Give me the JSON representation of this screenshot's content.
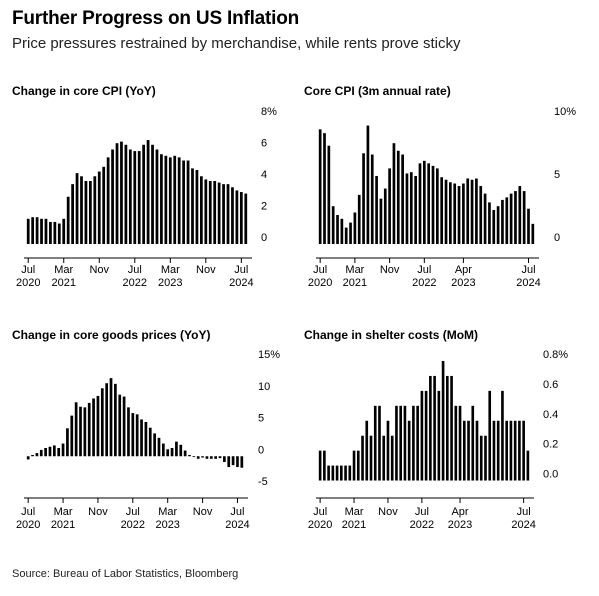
{
  "header": {
    "title": "Further Progress on US Inflation",
    "subtitle": "Price pressures restrained by merchandise, while rents prove sticky"
  },
  "footer": {
    "source": "Source: Bureau of Labor Statistics, Bloomberg"
  },
  "colors": {
    "bar": "#000000",
    "background": "#ffffff"
  },
  "chart_data": [
    {
      "type": "bar",
      "title": "Change in core CPI (YoY)",
      "ylim": [
        0,
        8
      ],
      "yticks": [
        "8%",
        "6",
        "4",
        "2",
        "0"
      ],
      "ytick_values": [
        8,
        6,
        4,
        2,
        0
      ],
      "x_tick_labels": [
        {
          "month": "Jul",
          "year": "2020",
          "index": 0
        },
        {
          "month": "Mar",
          "year": "2021",
          "index": 8
        },
        {
          "month": "Nov",
          "year": "",
          "index": 16
        },
        {
          "month": "Jul",
          "year": "2022",
          "index": 24
        },
        {
          "month": "Mar",
          "year": "2023",
          "index": 32
        },
        {
          "month": "Nov",
          "year": "",
          "index": 40
        },
        {
          "month": "Jul",
          "year": "2024",
          "index": 48
        }
      ],
      "values": [
        1.6,
        1.7,
        1.7,
        1.6,
        1.6,
        1.4,
        1.4,
        1.3,
        1.6,
        3.0,
        3.8,
        4.5,
        4.3,
        4.0,
        4.0,
        4.3,
        4.6,
        4.9,
        5.5,
        6.0,
        6.4,
        6.5,
        6.3,
        6.0,
        5.9,
        5.9,
        6.3,
        6.6,
        6.3,
        6.0,
        5.7,
        5.6,
        5.5,
        5.6,
        5.5,
        5.3,
        5.3,
        4.8,
        4.7,
        4.3,
        4.1,
        4.0,
        4.0,
        3.9,
        3.8,
        3.8,
        3.6,
        3.4,
        3.3,
        3.2
      ]
    },
    {
      "type": "bar",
      "title": "Core CPI (3m annual rate)",
      "ylim": [
        0,
        10
      ],
      "yticks": [
        "10%",
        "5",
        "0"
      ],
      "ytick_values": [
        10,
        5,
        0
      ],
      "x_tick_labels": [
        {
          "month": "Jul",
          "year": "2020",
          "index": 0
        },
        {
          "month": "Mar",
          "year": "2021",
          "index": 8
        },
        {
          "month": "Nov",
          "year": "",
          "index": 16
        },
        {
          "month": "Jul",
          "year": "2022",
          "index": 24
        },
        {
          "month": "Apr",
          "year": "2023",
          "index": 33
        },
        {
          "month": "Jul",
          "year": "2024",
          "index": 48
        }
      ],
      "values": [
        9.1,
        8.8,
        7.8,
        3.0,
        2.3,
        2.0,
        1.3,
        1.7,
        2.5,
        3.9,
        7.2,
        9.4,
        7.1,
        5.4,
        3.6,
        4.4,
        6.0,
        8.0,
        7.4,
        7.1,
        5.6,
        5.7,
        5.4,
        6.4,
        6.6,
        6.4,
        6.2,
        6.0,
        5.3,
        5.1,
        4.9,
        4.8,
        4.6,
        4.8,
        5.2,
        5.1,
        5.2,
        4.6,
        4.0,
        3.3,
        2.7,
        3.0,
        3.5,
        3.7,
        4.0,
        4.2,
        4.6,
        4.2,
        2.8,
        1.6
      ]
    },
    {
      "type": "bar",
      "title": "Change in core goods prices (YoY)",
      "ylim": [
        -5,
        15
      ],
      "yticks": [
        "15%",
        "10",
        "5",
        "0",
        "-5"
      ],
      "ytick_values": [
        15,
        10,
        5,
        0,
        -5
      ],
      "x_tick_labels": [
        {
          "month": "Jul",
          "year": "2020",
          "index": 0
        },
        {
          "month": "Mar",
          "year": "2021",
          "index": 8
        },
        {
          "month": "Nov",
          "year": "",
          "index": 16
        },
        {
          "month": "Jul",
          "year": "2022",
          "index": 24
        },
        {
          "month": "Mar",
          "year": "2023",
          "index": 32
        },
        {
          "month": "Nov",
          "year": "",
          "index": 40
        },
        {
          "month": "Jul",
          "year": "2024",
          "index": 48
        }
      ],
      "values": [
        -0.5,
        0.2,
        0.5,
        1.0,
        1.3,
        1.5,
        1.7,
        1.3,
        2.0,
        4.4,
        6.4,
        8.5,
        7.8,
        7.7,
        8.4,
        9.1,
        9.5,
        10.7,
        11.5,
        12.3,
        11.4,
        9.7,
        9.4,
        7.7,
        6.8,
        6.6,
        5.8,
        5.4,
        4.5,
        3.6,
        2.9,
        2.0,
        1.1,
        1.3,
        2.3,
        1.8,
        0.9,
        0.2,
        -0.1,
        -0.4,
        -0.2,
        -0.4,
        -0.4,
        -0.4,
        -0.3,
        -0.9,
        -1.7,
        -1.4,
        -1.7,
        -1.8
      ]
    },
    {
      "type": "bar",
      "title": "Change in shelter costs (MoM)",
      "ylim": [
        -0.05,
        0.8
      ],
      "yticks": [
        "0.8%",
        "0.6",
        "0.4",
        "0.2",
        "0.0"
      ],
      "ytick_values": [
        0.8,
        0.6,
        0.4,
        0.2,
        0.0
      ],
      "x_tick_labels": [
        {
          "month": "Jul",
          "year": "2020",
          "index": 0
        },
        {
          "month": "Mar",
          "year": "2021",
          "index": 8
        },
        {
          "month": "Nov",
          "year": "",
          "index": 16
        },
        {
          "month": "Jul",
          "year": "2022",
          "index": 24
        },
        {
          "month": "Apr",
          "year": "2023",
          "index": 33
        },
        {
          "month": "Jul",
          "year": "2024",
          "index": 48
        }
      ],
      "values": [
        0.2,
        0.2,
        0.1,
        0.1,
        0.1,
        0.1,
        0.1,
        0.1,
        0.2,
        0.2,
        0.3,
        0.4,
        0.3,
        0.5,
        0.5,
        0.3,
        0.4,
        0.3,
        0.5,
        0.5,
        0.5,
        0.4,
        0.5,
        0.5,
        0.6,
        0.6,
        0.7,
        0.7,
        0.6,
        0.8,
        0.7,
        0.7,
        0.5,
        0.5,
        0.4,
        0.4,
        0.5,
        0.4,
        0.3,
        0.3,
        0.6,
        0.4,
        0.4,
        0.6,
        0.4,
        0.4,
        0.4,
        0.4,
        0.4,
        0.2
      ]
    }
  ]
}
